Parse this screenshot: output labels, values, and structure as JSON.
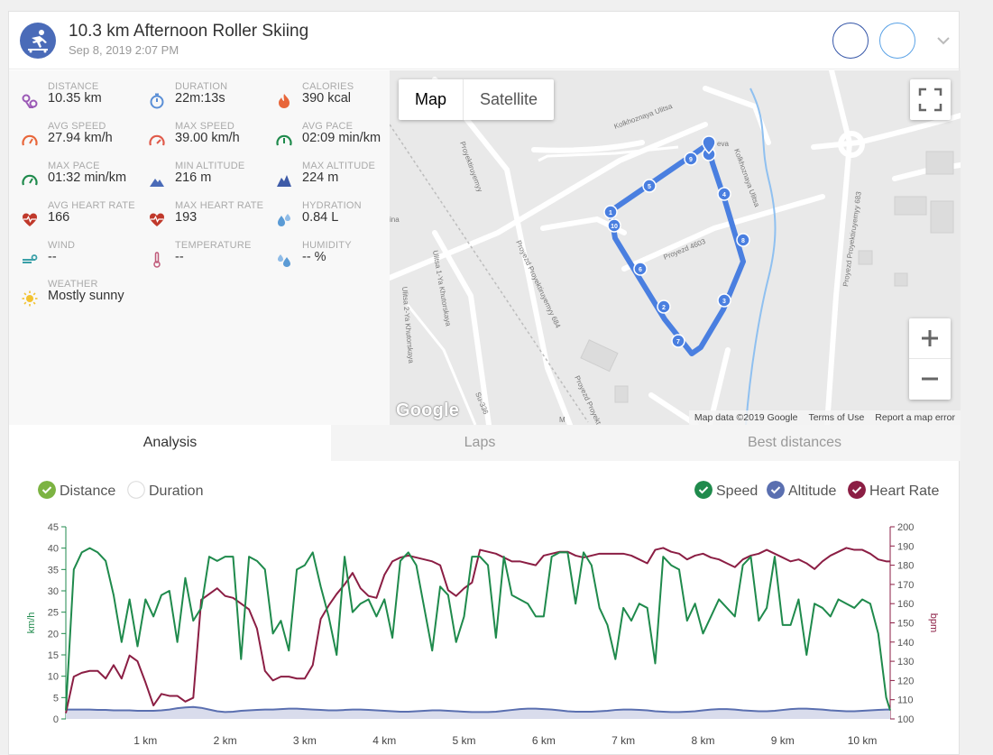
{
  "header": {
    "title": "10.3 km Afternoon Roller Skiing",
    "date": "Sep 8, 2019 2:07 PM",
    "icon": "roller-skier-icon",
    "accent": "#4a6bb8"
  },
  "stats": [
    {
      "key": "distance",
      "label": "DISTANCE",
      "value": "10.35 km",
      "icon": "route-icon",
      "color": "#9b59b6"
    },
    {
      "key": "duration",
      "label": "DURATION",
      "value": "22m:13s",
      "icon": "stopwatch-icon",
      "color": "#5b8fd6"
    },
    {
      "key": "calories",
      "label": "CALORIES",
      "value": "390 kcal",
      "icon": "flame-icon",
      "color": "#e8663a"
    },
    {
      "key": "avg_speed",
      "label": "AVG SPEED",
      "value": "27.94 km/h",
      "icon": "speedometer-icon",
      "color": "#e8663a"
    },
    {
      "key": "max_speed",
      "label": "MAX SPEED",
      "value": "39.00 km/h",
      "icon": "speedometer-icon",
      "color": "#e05a4a"
    },
    {
      "key": "avg_pace",
      "label": "AVG PACE",
      "value": "02:09 min/km",
      "icon": "speedometer-icon",
      "color": "#1f8a4c"
    },
    {
      "key": "max_pace",
      "label": "MAX PACE",
      "value": "01:32 min/km",
      "icon": "speedometer-icon",
      "color": "#1f8a4c"
    },
    {
      "key": "min_altitude",
      "label": "MIN ALTITUDE",
      "value": "216 m",
      "icon": "mountain-icon",
      "color": "#4a6bb8"
    },
    {
      "key": "max_altitude",
      "label": "MAX ALTITUDE",
      "value": "224 m",
      "icon": "mountain-icon",
      "color": "#3e5ba8"
    },
    {
      "key": "avg_heart_rate",
      "label": "AVG HEART RATE",
      "value": "166",
      "icon": "heart-rate-icon",
      "color": "#c0392b"
    },
    {
      "key": "max_heart_rate",
      "label": "MAX HEART RATE",
      "value": "193",
      "icon": "heart-rate-icon",
      "color": "#c0392b"
    },
    {
      "key": "hydration",
      "label": "HYDRATION",
      "value": "0.84 L",
      "icon": "water-drops-icon",
      "color": "#5b9bd5"
    },
    {
      "key": "wind",
      "label": "WIND",
      "value": "--",
      "icon": "wind-icon",
      "color": "#3aa0a8"
    },
    {
      "key": "temperature",
      "label": "TEMPERATURE",
      "value": "--",
      "icon": "thermometer-icon",
      "color": "#c05a7a"
    },
    {
      "key": "humidity",
      "label": "HUMIDITY",
      "value": "-- %",
      "icon": "humidity-icon",
      "color": "#5b9bd5"
    },
    {
      "key": "weather",
      "label": "WEATHER",
      "value": "Mostly sunny",
      "icon": "sun-icon",
      "color": "#f2c230"
    }
  ],
  "map": {
    "tabs": [
      "Map",
      "Satellite"
    ],
    "active_tab": "Map",
    "zoom_in": "+",
    "zoom_out": "−",
    "google": "Google",
    "footer": [
      "Map data ©2019 Google",
      "Terms of Use",
      "Report a map error"
    ],
    "streets": [
      "Kolkhoznaya Ulitsa",
      "Proyezd 4603",
      "Kolkhoznaya Ulitsa",
      "Proyezd Proyektiruyemyy 684",
      "Ulitsa 1-Ya Khutorskaya",
      "Ulitsa 2-Ya Khutorskaya",
      "Proyektiruyemyy",
      "Proyezd Proyektiruyemyy 683",
      "Su-336",
      "Proyezd Proyekt",
      "ina",
      "eva",
      "M"
    ],
    "route_markers": [
      "1",
      "2",
      "3",
      "4",
      "5",
      "6",
      "7",
      "8",
      "9",
      "10"
    ],
    "route_color": "#4a7fe0"
  },
  "tabs": {
    "analysis": "Analysis",
    "laps": "Laps",
    "best": "Best distances",
    "active": "analysis"
  },
  "toggles": {
    "distance": "Distance",
    "duration": "Duration",
    "speed": "Speed",
    "altitude": "Altitude",
    "heart_rate": "Heart Rate"
  },
  "chart_data": {
    "type": "line",
    "x": [
      0.0,
      0.1,
      0.2,
      0.3,
      0.4,
      0.5,
      0.6,
      0.7,
      0.8,
      0.9,
      1.0,
      1.1,
      1.2,
      1.3,
      1.4,
      1.5,
      1.6,
      1.7,
      1.8,
      1.9,
      2.0,
      2.1,
      2.2,
      2.3,
      2.4,
      2.5,
      2.6,
      2.7,
      2.8,
      2.9,
      3.0,
      3.1,
      3.2,
      3.3,
      3.4,
      3.5,
      3.6,
      3.7,
      3.8,
      3.9,
      4.0,
      4.1,
      4.2,
      4.3,
      4.4,
      4.5,
      4.6,
      4.7,
      4.8,
      4.9,
      5.0,
      5.1,
      5.2,
      5.3,
      5.4,
      5.5,
      5.6,
      5.7,
      5.8,
      5.9,
      6.0,
      6.1,
      6.2,
      6.3,
      6.4,
      6.5,
      6.6,
      6.7,
      6.8,
      6.9,
      7.0,
      7.1,
      7.2,
      7.3,
      7.4,
      7.5,
      7.6,
      7.7,
      7.8,
      7.9,
      8.0,
      8.1,
      8.2,
      8.3,
      8.4,
      8.5,
      8.6,
      8.7,
      8.8,
      8.9,
      9.0,
      9.1,
      9.2,
      9.3,
      9.4,
      9.5,
      9.6,
      9.7,
      9.8,
      9.9,
      10.0,
      10.1,
      10.2,
      10.3,
      10.35
    ],
    "series": [
      {
        "name": "Speed",
        "color": "#1f8a4c",
        "axis": "left",
        "values": [
          2,
          35,
          39,
          40,
          39,
          37,
          29,
          18,
          28,
          17,
          28,
          24,
          29,
          30,
          18,
          33,
          23,
          26,
          38,
          37,
          38,
          38,
          14,
          38,
          37,
          35,
          20,
          23,
          16,
          35,
          36,
          39,
          31,
          24,
          15,
          38,
          25,
          27,
          28,
          24,
          28,
          19,
          37,
          39,
          36,
          26,
          16,
          31,
          29,
          18,
          24,
          38,
          38,
          36,
          19,
          38,
          29,
          28,
          27,
          24,
          24,
          38,
          39,
          39,
          27,
          39,
          36,
          26,
          22,
          14,
          26,
          23,
          27,
          26,
          13,
          38,
          36,
          35,
          23,
          27,
          20,
          24,
          28,
          26,
          24,
          36,
          38,
          23,
          26,
          38,
          22,
          22,
          28,
          15,
          27,
          26,
          24,
          28,
          27,
          26,
          28,
          27,
          20,
          5,
          2
        ]
      },
      {
        "name": "Altitude",
        "color": "#5a6fb0",
        "axis": "left",
        "values": [
          2.2,
          2.2,
          2.2,
          2.2,
          2.1,
          2.1,
          2.0,
          2.0,
          2.0,
          1.9,
          1.9,
          1.9,
          2.0,
          2.2,
          2.5,
          2.7,
          2.8,
          2.6,
          2.2,
          1.8,
          1.6,
          1.7,
          1.9,
          2.0,
          2.1,
          2.2,
          2.2,
          2.3,
          2.4,
          2.4,
          2.3,
          2.2,
          2.1,
          2.0,
          2.0,
          2.1,
          2.2,
          2.2,
          2.1,
          2.0,
          1.9,
          1.8,
          1.7,
          1.7,
          1.8,
          1.9,
          2.0,
          2.0,
          1.9,
          1.8,
          1.7,
          1.6,
          1.6,
          1.6,
          1.7,
          1.9,
          2.1,
          2.3,
          2.4,
          2.4,
          2.3,
          2.2,
          2.0,
          1.8,
          1.7,
          1.7,
          1.7,
          1.8,
          1.9,
          2.1,
          2.2,
          2.2,
          2.1,
          2.0,
          1.8,
          1.7,
          1.6,
          1.6,
          1.7,
          1.8,
          2.0,
          2.2,
          2.3,
          2.3,
          2.2,
          2.0,
          1.9,
          1.8,
          1.8,
          1.9,
          2.1,
          2.3,
          2.4,
          2.4,
          2.3,
          2.2,
          2.0,
          1.9,
          1.8,
          1.8,
          1.9,
          2.0,
          2.1,
          2.2,
          2.2
        ]
      },
      {
        "name": "Heart Rate",
        "color": "#8b1e44",
        "axis": "right",
        "values": [
          103,
          122,
          124,
          125,
          125,
          121,
          128,
          121,
          133,
          130,
          119,
          107,
          113,
          112,
          112,
          109,
          111,
          162,
          165,
          168,
          164,
          163,
          160,
          157,
          147,
          125,
          120,
          122,
          122,
          121,
          121,
          128,
          152,
          159,
          165,
          170,
          176,
          168,
          164,
          163,
          175,
          182,
          184,
          185,
          184,
          183,
          182,
          180,
          167,
          164,
          168,
          171,
          188,
          187,
          186,
          184,
          182,
          182,
          181,
          180,
          185,
          186,
          187,
          187,
          185,
          184,
          185,
          186,
          186,
          186,
          186,
          185,
          183,
          181,
          188,
          189,
          187,
          186,
          183,
          185,
          186,
          184,
          183,
          181,
          179,
          183,
          185,
          186,
          188,
          186,
          184,
          182,
          183,
          181,
          178,
          182,
          185,
          187,
          189,
          188,
          188,
          186,
          183,
          182,
          182
        ]
      }
    ],
    "xlabel": "",
    "ylabel_left": "km/h",
    "ylabel_right": "bpm",
    "x_ticks": [
      "1 km",
      "2 km",
      "3 km",
      "4 km",
      "5 km",
      "6 km",
      "7 km",
      "8 km",
      "9 km",
      "10 km"
    ],
    "y_left_ticks": [
      "0",
      "5",
      "10",
      "15",
      "20",
      "25",
      "30",
      "35",
      "40",
      "45"
    ],
    "y_right_ticks": [
      "100",
      "110",
      "120",
      "130",
      "140",
      "150",
      "160",
      "170",
      "180",
      "190",
      "200"
    ],
    "ylim_left": [
      0,
      45
    ],
    "ylim_right": [
      100,
      200
    ],
    "xlim": [
      0,
      10.35
    ],
    "grid": false,
    "legend": "top"
  }
}
